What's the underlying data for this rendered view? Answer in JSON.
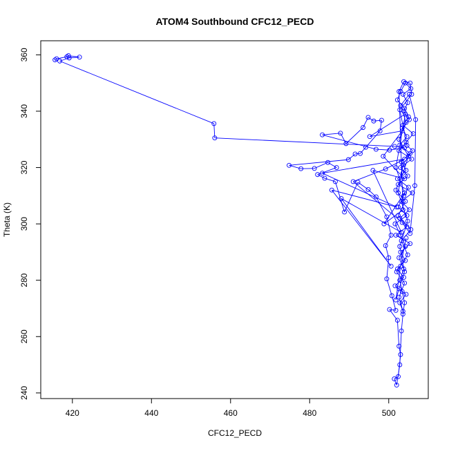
{
  "chart_data": {
    "type": "scatter",
    "title": "ATOM4 Southbound CFC12_PECD",
    "xlabel": "CFC12_PECD",
    "ylabel": "Theta (K)",
    "xlim": [
      412,
      510
    ],
    "ylim": [
      238,
      365
    ],
    "x_ticks": [
      420,
      440,
      460,
      480,
      500
    ],
    "y_ticks": [
      240,
      260,
      280,
      300,
      320,
      340,
      360
    ],
    "grid": false,
    "legend": "none",
    "series": [
      {
        "color": "#0000ff",
        "marker": "open-circle",
        "connected": true,
        "points": [
          [
            415.6,
            358.2
          ],
          [
            416.0,
            358.6
          ],
          [
            418.6,
            359.3
          ],
          [
            419.0,
            359.7
          ],
          [
            421.8,
            359.2
          ],
          [
            419.2,
            358.9
          ],
          [
            416.8,
            357.8
          ],
          [
            455.8,
            335.6
          ],
          [
            456.0,
            330.5
          ],
          [
            501.5,
            327.5
          ],
          [
            504.0,
            327.0
          ],
          [
            500.2,
            326.2
          ],
          [
            496.8,
            326.5
          ],
          [
            483.2,
            331.6
          ],
          [
            487.8,
            332.2
          ],
          [
            489.2,
            328.5
          ],
          [
            493.5,
            334.2
          ],
          [
            494.8,
            337.8
          ],
          [
            496.2,
            336.5
          ],
          [
            498.2,
            336.8
          ],
          [
            497.8,
            333.0
          ],
          [
            494.2,
            327.2
          ],
          [
            492.8,
            325.0
          ],
          [
            491.5,
            324.8
          ],
          [
            489.8,
            322.8
          ],
          [
            474.8,
            320.8
          ],
          [
            477.8,
            319.6
          ],
          [
            481.2,
            319.7
          ],
          [
            484.6,
            321.8
          ],
          [
            486.8,
            320.0
          ],
          [
            482.0,
            317.5
          ],
          [
            483.8,
            316.2
          ],
          [
            486.5,
            315.0
          ],
          [
            488.8,
            304.2
          ],
          [
            492.2,
            314.8
          ],
          [
            494.8,
            312.2
          ],
          [
            496.8,
            309.6
          ],
          [
            499.5,
            302.5
          ],
          [
            500.6,
            296.0
          ],
          [
            499.2,
            292.3
          ],
          [
            500.0,
            288.0
          ],
          [
            499.5,
            280.5
          ],
          [
            500.8,
            274.5
          ],
          [
            501.8,
            269.3
          ],
          [
            500.2,
            269.6
          ],
          [
            502.2,
            265.8
          ],
          [
            502.6,
            256.6
          ],
          [
            503.0,
            253.6
          ],
          [
            502.4,
            245.8
          ],
          [
            501.4,
            245.0
          ],
          [
            502.0,
            242.8
          ],
          [
            502.8,
            250.0
          ],
          [
            503.2,
            262.0
          ],
          [
            503.6,
            268.0
          ],
          [
            504.0,
            272.0
          ],
          [
            503.4,
            276.0
          ],
          [
            502.8,
            280.0
          ],
          [
            503.8,
            284.0
          ],
          [
            502.6,
            288.0
          ],
          [
            504.2,
            292.0
          ],
          [
            503.0,
            296.0
          ],
          [
            501.6,
            300.0
          ],
          [
            504.6,
            303.0
          ],
          [
            502.4,
            306.0
          ],
          [
            503.8,
            310.0
          ],
          [
            505.0,
            313.0
          ],
          [
            502.2,
            316.0
          ],
          [
            504.4,
            319.0
          ],
          [
            503.2,
            322.0
          ],
          [
            505.4,
            325.0
          ],
          [
            502.8,
            328.0
          ],
          [
            504.6,
            331.0
          ],
          [
            503.4,
            334.0
          ],
          [
            505.2,
            337.0
          ],
          [
            503.8,
            340.0
          ],
          [
            504.8,
            343.0
          ],
          [
            503.6,
            346.0
          ],
          [
            505.6,
            348.0
          ],
          [
            504.2,
            350.0
          ],
          [
            503.0,
            347.0
          ],
          [
            502.2,
            344.0
          ],
          [
            504.0,
            341.0
          ],
          [
            505.0,
            338.0
          ],
          [
            503.6,
            335.0
          ],
          [
            506.2,
            332.0
          ],
          [
            504.4,
            329.0
          ],
          [
            502.6,
            326.0
          ],
          [
            505.8,
            323.0
          ],
          [
            503.0,
            320.0
          ],
          [
            504.8,
            317.0
          ],
          [
            502.4,
            314.0
          ],
          [
            506.0,
            311.0
          ],
          [
            503.2,
            308.0
          ],
          [
            505.2,
            305.0
          ],
          [
            502.8,
            302.0
          ],
          [
            504.6,
            299.0
          ],
          [
            501.8,
            296.0
          ],
          [
            505.4,
            293.0
          ],
          [
            503.0,
            290.0
          ],
          [
            504.2,
            287.0
          ],
          [
            502.2,
            284.0
          ],
          [
            503.8,
            281.0
          ],
          [
            501.6,
            278.0
          ],
          [
            504.4,
            275.0
          ],
          [
            502.8,
            272.0
          ],
          [
            503.6,
            269.0
          ],
          [
            502.6,
            274.0
          ],
          [
            504.0,
            279.0
          ],
          [
            502.0,
            283.0
          ],
          [
            504.8,
            289.0
          ],
          [
            503.2,
            294.0
          ],
          [
            505.6,
            298.0
          ],
          [
            502.4,
            303.0
          ],
          [
            504.2,
            308.0
          ],
          [
            501.8,
            312.0
          ],
          [
            503.6,
            318.0
          ],
          [
            505.0,
            324.0
          ],
          [
            502.6,
            330.0
          ],
          [
            504.4,
            336.0
          ],
          [
            503.0,
            342.0
          ],
          [
            505.2,
            346.0
          ],
          [
            506.8,
            337.0
          ],
          [
            506.6,
            313.6
          ],
          [
            505.4,
            296.6
          ],
          [
            503.4,
            300.5
          ],
          [
            491.0,
            315.0
          ],
          [
            499.2,
            319.5
          ],
          [
            504.0,
            323.0
          ],
          [
            483.2,
            318.0
          ],
          [
            502.0,
            306.0
          ],
          [
            485.6,
            312.0
          ],
          [
            500.6,
            285.0
          ],
          [
            488.0,
            309.0
          ],
          [
            503.2,
            297.0
          ],
          [
            496.0,
            319.0
          ],
          [
            504.0,
            316.0
          ],
          [
            498.6,
            324.0
          ],
          [
            503.4,
            333.0
          ],
          [
            495.2,
            331.0
          ],
          [
            504.2,
            339.0
          ],
          [
            501.8,
            320.0
          ],
          [
            504.0,
            311.0
          ],
          [
            498.8,
            300.0
          ],
          [
            503.6,
            305.0
          ],
          [
            502.6,
            347.0
          ],
          [
            503.8,
            350.5
          ],
          [
            505.4,
            350.0
          ],
          [
            505.8,
            346.0
          ],
          [
            502.8,
            340.5
          ],
          [
            504.6,
            327.8
          ],
          [
            506.0,
            326.0
          ],
          [
            503.6,
            321.0
          ],
          [
            502.4,
            311.0
          ],
          [
            504.8,
            301.0
          ],
          [
            502.8,
            292.0
          ],
          [
            504.0,
            283.0
          ],
          [
            502.6,
            277.0
          ],
          [
            501.8,
            273.0
          ],
          [
            503.0,
            285.0
          ],
          [
            504.4,
            295.0
          ]
        ]
      }
    ]
  }
}
